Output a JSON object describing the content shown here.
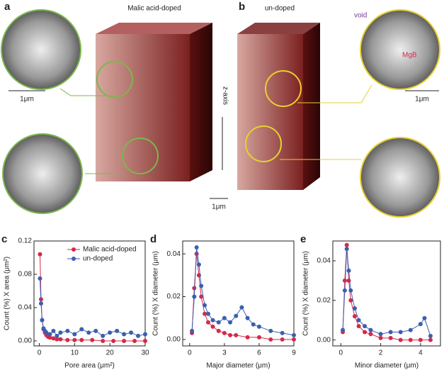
{
  "figure": {
    "panel_a": "a",
    "panel_b": "b",
    "title_a": "Malic acid-doped",
    "title_b": "un-doped",
    "axis_label": "z-axis",
    "scale_left": "1μm",
    "scale_center": "1μm",
    "scale_right": "1μm",
    "void_label": "void",
    "mgb_label": "MgB"
  },
  "chart_data": [
    {
      "type": "line",
      "label": "c",
      "xlabel": "Pore area (μm²)",
      "ylabel": "Count (%) X area (μm²)",
      "xlim": [
        -1.5,
        30
      ],
      "ylim": [
        -0.006,
        0.12
      ],
      "xticks": [
        0,
        10,
        20,
        30
      ],
      "yticks": [
        {
          "value": 0,
          "label": "0.00"
        },
        {
          "value": 0.04,
          "label": "0.04"
        },
        {
          "value": 0.08,
          "label": "0.08"
        },
        {
          "value": 0.12,
          "label": "0.12"
        }
      ],
      "legend": "upper right",
      "series": [
        {
          "name": "Malic acid-doped",
          "color": "#d42a4a",
          "x": [
            0.2,
            0.5,
            0.8,
            1.2,
            1.6,
            2,
            2.5,
            3,
            4,
            5,
            6,
            8,
            10,
            12,
            15,
            18,
            21,
            24,
            27,
            30
          ],
          "values": [
            0.104,
            0.05,
            0.025,
            0.014,
            0.01,
            0.007,
            0.005,
            0.004,
            0.003,
            0.002,
            0.002,
            0.001,
            0.001,
            0.001,
            0.001,
            0,
            0,
            0,
            0,
            0
          ]
        },
        {
          "name": "un-doped",
          "color": "#3a5fb0",
          "x": [
            0.2,
            0.5,
            0.8,
            1.2,
            1.6,
            2,
            3,
            4,
            5,
            6,
            8,
            10,
            12,
            14,
            16,
            18,
            20,
            22,
            24,
            26,
            28,
            30
          ],
          "values": [
            0.075,
            0.045,
            0.025,
            0.015,
            0.012,
            0.01,
            0.008,
            0.012,
            0.006,
            0.01,
            0.012,
            0.008,
            0.014,
            0.01,
            0.012,
            0.006,
            0.01,
            0.012,
            0.008,
            0.01,
            0.006,
            0.008
          ]
        }
      ]
    },
    {
      "type": "line",
      "label": "d",
      "xlabel": "Major diameter (μm)",
      "ylabel": "Count (%) X diameter (μm)",
      "xlim": [
        -0.6,
        9
      ],
      "ylim": [
        -0.003,
        0.046
      ],
      "xticks": [
        0,
        3,
        6,
        9
      ],
      "yticks": [
        {
          "value": 0,
          "label": "0.00"
        },
        {
          "value": 0.02,
          "label": "0.02"
        },
        {
          "value": 0.04,
          "label": "0.04"
        }
      ],
      "series": [
        {
          "color": "#d42a4a",
          "x": [
            0.2,
            0.4,
            0.6,
            0.8,
            1,
            1.3,
            1.6,
            2,
            2.5,
            3,
            3.5,
            4,
            5,
            6,
            7,
            8,
            9
          ],
          "values": [
            0.003,
            0.024,
            0.04,
            0.03,
            0.02,
            0.012,
            0.008,
            0.006,
            0.004,
            0.003,
            0.002,
            0.002,
            0.001,
            0.001,
            0,
            0,
            0
          ]
        },
        {
          "color": "#3a5fb0",
          "x": [
            0.2,
            0.4,
            0.6,
            0.8,
            1,
            1.3,
            1.6,
            2,
            2.5,
            3,
            3.5,
            4,
            4.5,
            5,
            5.5,
            6,
            7,
            8,
            9
          ],
          "values": [
            0.004,
            0.02,
            0.043,
            0.035,
            0.025,
            0.016,
            0.012,
            0.009,
            0.008,
            0.01,
            0.008,
            0.011,
            0.015,
            0.01,
            0.007,
            0.006,
            0.004,
            0.003,
            0.002
          ]
        }
      ]
    },
    {
      "type": "line",
      "label": "e",
      "xlabel": "Minor diameter (μm)",
      "ylabel": "Count (%) X diameter (μm)",
      "xlim": [
        -0.4,
        5
      ],
      "ylim": [
        -0.003,
        0.05
      ],
      "xticks": [
        0,
        2,
        4
      ],
      "yticks": [
        {
          "value": 0,
          "label": "0.00"
        },
        {
          "value": 0.02,
          "label": "0.02"
        },
        {
          "value": 0.04,
          "label": "0.04"
        }
      ],
      "series": [
        {
          "color": "#d42a4a",
          "x": [
            0.1,
            0.2,
            0.3,
            0.4,
            0.5,
            0.7,
            0.9,
            1.2,
            1.5,
            2,
            2.5,
            3,
            3.5,
            4,
            4.5
          ],
          "values": [
            0.004,
            0.03,
            0.048,
            0.03,
            0.02,
            0.012,
            0.007,
            0.004,
            0.003,
            0.001,
            0.001,
            0,
            0,
            0,
            0
          ]
        },
        {
          "color": "#3a5fb0",
          "x": [
            0.1,
            0.2,
            0.3,
            0.4,
            0.5,
            0.7,
            0.9,
            1.2,
            1.5,
            2,
            2.5,
            3,
            3.5,
            4,
            4.2,
            4.5
          ],
          "values": [
            0.005,
            0.025,
            0.046,
            0.035,
            0.025,
            0.016,
            0.01,
            0.007,
            0.005,
            0.003,
            0.004,
            0.004,
            0.005,
            0.008,
            0.011,
            0.002
          ]
        }
      ]
    }
  ]
}
